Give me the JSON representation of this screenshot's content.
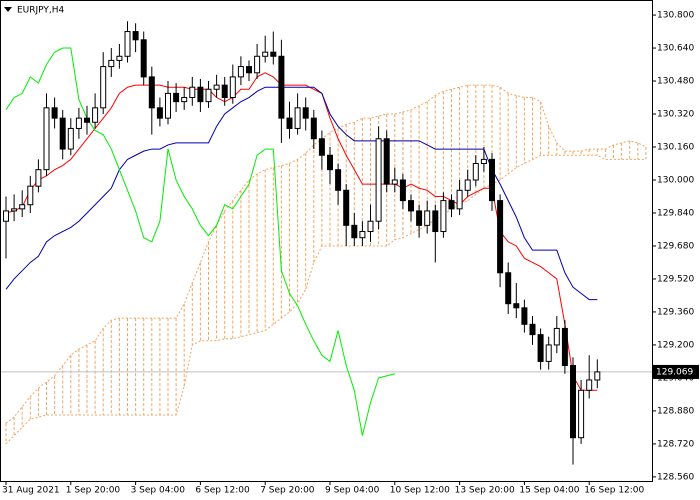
{
  "chart_data": {
    "type": "candlestick",
    "title": "EURJPY,H4",
    "ylim": [
      128.54,
      130.873
    ],
    "yticks": [
      {
        "value": 130.8,
        "label": "130.800"
      },
      {
        "value": 130.64,
        "label": "130.640"
      },
      {
        "value": 130.48,
        "label": "130.480"
      },
      {
        "value": 130.32,
        "label": "130.320"
      },
      {
        "value": 130.16,
        "label": "130.160"
      },
      {
        "value": 130.0,
        "label": "130.000"
      },
      {
        "value": 129.84,
        "label": "129.840"
      },
      {
        "value": 129.68,
        "label": "129.680"
      },
      {
        "value": 129.52,
        "label": "129.520"
      },
      {
        "value": 129.36,
        "label": "129.360"
      },
      {
        "value": 129.2,
        "label": "129.200"
      },
      {
        "value": 129.04,
        "label": "129.040"
      },
      {
        "value": 128.88,
        "label": "128.880"
      },
      {
        "value": 128.72,
        "label": "128.720"
      },
      {
        "value": 128.56,
        "label": "128.560"
      }
    ],
    "xticks": [
      {
        "value": 0,
        "label": "31 Aug 2021"
      },
      {
        "value": 8,
        "label": "1 Sep 20:00"
      },
      {
        "value": 16,
        "label": "3 Sep 04:00"
      },
      {
        "value": 24,
        "label": "6 Sep 12:00"
      },
      {
        "value": 32,
        "label": "7 Sep 20:00"
      },
      {
        "value": 40,
        "label": "9 Sep 04:00"
      },
      {
        "value": 48,
        "label": "10 Sep 12:00"
      },
      {
        "value": 56,
        "label": "13 Sep 20:00"
      },
      {
        "value": 64,
        "label": "15 Sep 04:00"
      },
      {
        "value": 72,
        "label": "16 Sep 12:00"
      }
    ],
    "candles": {
      "up_color": "#ffffff",
      "down_color": "#000000",
      "outline": "#000000",
      "open": [
        129.8,
        129.85,
        129.86,
        129.88,
        129.97,
        130.05,
        130.35,
        130.3,
        130.15,
        130.25,
        130.3,
        130.28,
        130.35,
        130.55,
        130.58,
        130.6,
        130.72,
        130.68,
        130.5,
        130.35,
        130.3,
        130.42,
        130.38,
        130.4,
        130.45,
        130.38,
        130.44,
        130.46,
        130.4,
        130.5,
        130.55,
        130.52,
        130.6,
        130.62,
        130.6,
        130.3,
        130.25,
        130.35,
        130.3,
        130.2,
        130.12,
        130.05,
        129.95,
        129.78,
        129.72,
        129.75,
        129.8,
        130.2,
        129.98,
        130.0,
        129.9,
        129.85,
        129.78,
        129.85,
        129.75,
        129.9,
        129.86,
        129.95,
        130.0,
        130.08,
        130.1,
        129.9,
        129.55,
        129.4,
        129.38,
        129.3,
        129.25,
        129.12,
        129.2,
        129.28,
        129.1,
        128.75,
        128.98,
        129.03
      ],
      "high": [
        129.92,
        129.93,
        129.95,
        130.02,
        130.1,
        130.42,
        130.4,
        130.34,
        130.3,
        130.35,
        130.36,
        130.42,
        130.62,
        130.64,
        130.66,
        130.77,
        130.76,
        130.72,
        130.55,
        130.4,
        130.48,
        130.47,
        130.45,
        130.5,
        130.49,
        130.48,
        130.51,
        130.5,
        130.56,
        130.6,
        130.58,
        130.66,
        130.7,
        130.72,
        130.68,
        130.38,
        130.42,
        130.4,
        130.34,
        130.24,
        130.16,
        130.08,
        129.98,
        129.84,
        129.8,
        129.88,
        130.26,
        130.24,
        130.06,
        130.03,
        129.93,
        129.88,
        129.9,
        129.88,
        129.94,
        129.93,
        130.0,
        130.05,
        130.12,
        130.16,
        130.13,
        129.93,
        129.6,
        129.5,
        129.42,
        129.34,
        129.28,
        129.24,
        129.34,
        129.32,
        129.14,
        129.03,
        129.15,
        129.13
      ],
      "low": [
        129.62,
        129.8,
        129.82,
        129.84,
        129.94,
        130.02,
        130.25,
        130.1,
        130.12,
        130.2,
        130.22,
        130.25,
        130.32,
        130.5,
        130.54,
        130.57,
        130.62,
        130.46,
        130.22,
        130.26,
        130.27,
        130.33,
        130.34,
        130.36,
        130.33,
        130.35,
        130.4,
        130.36,
        130.37,
        130.46,
        130.48,
        130.49,
        130.57,
        130.56,
        130.18,
        130.2,
        130.22,
        130.24,
        130.15,
        130.05,
        129.98,
        129.88,
        129.68,
        129.68,
        129.68,
        129.7,
        129.76,
        129.94,
        129.94,
        129.86,
        129.8,
        129.72,
        129.74,
        129.6,
        129.72,
        129.82,
        129.83,
        129.92,
        129.97,
        130.04,
        129.85,
        129.48,
        129.35,
        129.33,
        129.26,
        129.2,
        129.08,
        129.08,
        129.16,
        129.06,
        128.62,
        128.72,
        128.94,
        128.99
      ],
      "close": [
        129.85,
        129.86,
        129.88,
        129.97,
        130.05,
        130.35,
        130.3,
        130.15,
        130.25,
        130.3,
        130.28,
        130.35,
        130.55,
        130.58,
        130.6,
        130.72,
        130.68,
        130.5,
        130.35,
        130.3,
        130.42,
        130.38,
        130.4,
        130.45,
        130.38,
        130.44,
        130.46,
        130.4,
        130.5,
        130.55,
        130.52,
        130.6,
        130.62,
        130.6,
        130.3,
        130.25,
        130.35,
        130.3,
        130.2,
        130.12,
        130.05,
        129.95,
        129.78,
        129.72,
        129.75,
        129.8,
        130.2,
        129.98,
        130.0,
        129.9,
        129.85,
        129.78,
        129.85,
        129.75,
        129.9,
        129.86,
        129.95,
        130.0,
        130.08,
        130.1,
        129.9,
        129.55,
        129.4,
        129.38,
        129.3,
        129.25,
        129.12,
        129.2,
        129.28,
        129.1,
        128.75,
        128.98,
        129.03,
        129.069
      ]
    },
    "series": [
      {
        "color": "#ff0000",
        "values": [
          129.84,
          129.85,
          129.87,
          129.95,
          130.0,
          130.02,
          130.05,
          130.07,
          130.1,
          130.15,
          130.2,
          130.25,
          130.3,
          130.35,
          130.42,
          130.45,
          130.46,
          130.46,
          130.46,
          130.46,
          130.45,
          130.45,
          130.45,
          130.44,
          130.44,
          130.44,
          130.4,
          130.38,
          130.4,
          130.44,
          130.44,
          130.5,
          130.52,
          130.5,
          130.46,
          130.46,
          130.46,
          130.46,
          130.44,
          130.42,
          130.3,
          130.2,
          130.12,
          130.05,
          129.98,
          129.98,
          129.98,
          129.98,
          129.98,
          129.96,
          129.98,
          129.96,
          129.95,
          129.92,
          129.92,
          129.9,
          129.88,
          129.92,
          129.94,
          129.96,
          129.96,
          129.75,
          129.7,
          129.68,
          129.62,
          129.6,
          129.58,
          129.55,
          129.52,
          129.3,
          129.05,
          128.98,
          128.98,
          128.98
        ]
      },
      {
        "color": "#0000aa",
        "values": [
          129.47,
          129.52,
          129.56,
          129.6,
          129.63,
          129.7,
          129.73,
          129.75,
          129.77,
          129.8,
          129.84,
          129.88,
          129.92,
          129.96,
          130.05,
          130.1,
          130.12,
          130.14,
          130.15,
          130.15,
          130.17,
          130.18,
          130.18,
          130.18,
          130.18,
          130.18,
          130.26,
          130.32,
          130.35,
          130.38,
          130.4,
          130.43,
          130.45,
          130.45,
          130.45,
          130.45,
          130.45,
          130.45,
          130.45,
          130.42,
          130.32,
          130.26,
          130.22,
          130.19,
          130.19,
          130.19,
          130.19,
          130.19,
          130.19,
          130.19,
          130.19,
          130.19,
          130.17,
          130.15,
          130.15,
          130.15,
          130.15,
          130.15,
          130.15,
          130.15,
          130.05,
          129.98,
          129.9,
          129.82,
          129.72,
          129.66,
          129.66,
          129.66,
          129.66,
          129.55,
          129.48,
          129.45,
          129.42,
          129.42
        ]
      },
      {
        "color": "#00ee00",
        "values": [
          130.34,
          130.4,
          130.42,
          130.5,
          130.47,
          130.56,
          130.62,
          130.64,
          130.64,
          130.39,
          130.3,
          130.24,
          130.22,
          130.15,
          130.05,
          129.95,
          129.85,
          129.72,
          129.7,
          129.8,
          130.15,
          130.0,
          129.92,
          129.86,
          129.78,
          129.73,
          129.78,
          129.88,
          129.86,
          129.92,
          129.98,
          130.12,
          130.15,
          130.15,
          129.56,
          129.45,
          129.39,
          129.3,
          129.22,
          129.15,
          129.12,
          129.27,
          129.1,
          128.98,
          128.76,
          128.92,
          129.04,
          129.05,
          129.06,
          null,
          null,
          null,
          null,
          null,
          null,
          null,
          null,
          null,
          null,
          null,
          null,
          null,
          null,
          null,
          null,
          null,
          null,
          null,
          null,
          null,
          null,
          null,
          null,
          null
        ]
      }
    ],
    "cloud": {
      "color": "#f4a460",
      "series": [
        {
          "values": [
            128.82,
            128.85,
            128.9,
            128.95,
            128.99,
            129.02,
            129.05,
            129.1,
            129.15,
            129.18,
            129.2,
            129.22,
            129.28,
            129.32,
            129.33,
            129.33,
            129.33,
            129.33,
            129.33,
            129.33,
            129.33,
            129.33,
            129.4,
            129.5,
            129.6,
            129.7,
            129.78,
            129.85,
            129.9,
            129.95,
            130.0,
            130.03,
            130.05,
            130.06,
            130.07,
            130.08,
            130.1,
            130.13,
            130.17,
            130.2,
            130.23,
            130.25,
            130.27,
            130.28,
            130.3,
            130.3,
            130.31,
            130.32,
            130.32,
            130.33,
            130.34,
            130.36,
            130.38,
            130.41,
            130.43,
            130.44,
            130.45,
            130.46,
            130.46,
            130.46,
            130.46,
            130.45,
            130.42,
            130.41,
            130.4,
            130.4,
            130.38,
            130.26,
            130.18,
            130.14,
            130.14,
            130.14,
            130.15,
            130.15,
            130.15,
            130.17,
            130.18,
            130.19,
            130.18,
            130.16
          ]
        },
        {
          "values": [
            128.72,
            128.76,
            128.8,
            128.84,
            128.85,
            128.86,
            128.86,
            128.86,
            128.86,
            128.86,
            128.86,
            128.86,
            128.86,
            128.86,
            128.86,
            128.86,
            128.86,
            128.86,
            128.86,
            128.86,
            128.86,
            128.86,
            129.0,
            129.2,
            129.22,
            129.22,
            129.22,
            129.23,
            129.23,
            129.24,
            129.25,
            129.26,
            129.27,
            129.3,
            129.33,
            129.36,
            129.4,
            129.47,
            129.6,
            129.68,
            129.68,
            129.68,
            129.68,
            129.68,
            129.68,
            129.68,
            129.68,
            129.68,
            129.71,
            129.72,
            129.74,
            129.76,
            129.78,
            129.81,
            129.83,
            129.86,
            129.88,
            129.9,
            129.93,
            129.96,
            129.98,
            130.0,
            130.03,
            130.06,
            130.08,
            130.1,
            130.12,
            130.12,
            130.12,
            130.12,
            130.12,
            130.12,
            130.12,
            130.12,
            130.1,
            130.1,
            130.1,
            130.1,
            130.1,
            130.1
          ]
        }
      ]
    },
    "price_line": 129.069
  }
}
